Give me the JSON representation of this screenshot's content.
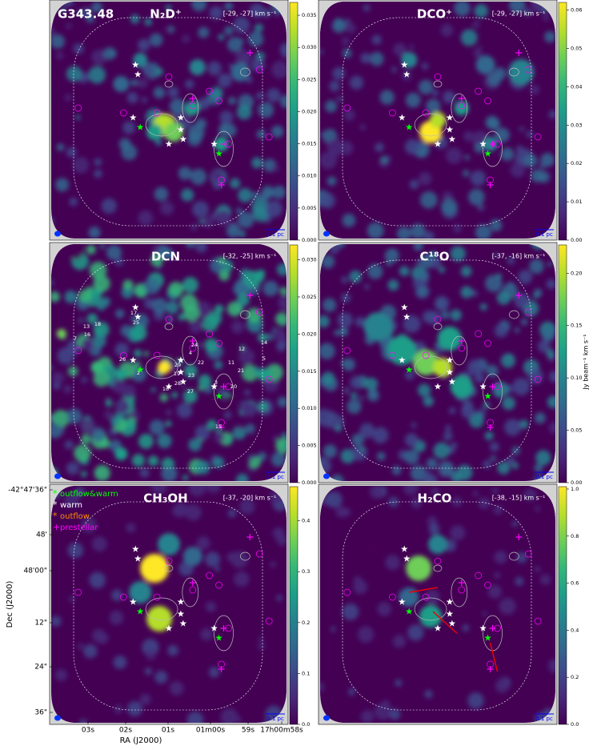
{
  "chart_data": [
    {
      "type": "heatmap",
      "field": "G343.48",
      "title": "N₂D⁺",
      "velocity": "[-29, -27] km s⁻¹",
      "scale_bar": "0.1 pc",
      "cmap": "viridis",
      "ylim": [
        0,
        0.037
      ],
      "yticks": [
        {
          "value": 0,
          "label": "0.000"
        },
        {
          "value": 0.005,
          "label": "0.005"
        },
        {
          "value": 0.01,
          "label": "0.010"
        },
        {
          "value": 0.015,
          "label": "0.015"
        },
        {
          "value": 0.02,
          "label": "0.020"
        },
        {
          "value": 0.025,
          "label": "0.025"
        },
        {
          "value": 0.03,
          "label": "0.030"
        },
        {
          "value": 0.035,
          "label": "0.035"
        }
      ]
    },
    {
      "type": "heatmap",
      "title": "DCO⁺",
      "velocity": "[-29, -27] km s⁻¹",
      "scale_bar": "0.1 pc",
      "cmap": "viridis",
      "ylim": [
        0,
        0.062
      ],
      "yticks": [
        {
          "value": 0,
          "label": "0.00"
        },
        {
          "value": 0.01,
          "label": "0.01"
        },
        {
          "value": 0.02,
          "label": "0.02"
        },
        {
          "value": 0.03,
          "label": "0.03"
        },
        {
          "value": 0.04,
          "label": "0.04"
        },
        {
          "value": 0.05,
          "label": "0.05"
        },
        {
          "value": 0.06,
          "label": "0.06"
        }
      ]
    },
    {
      "type": "heatmap",
      "title": "DCN",
      "velocity": "[-32, -25] km s⁻¹",
      "scale_bar": "0.1 pc",
      "cmap": "viridis",
      "ylim": [
        0,
        0.032
      ],
      "yticks": [
        {
          "value": 0,
          "label": "0.000"
        },
        {
          "value": 0.005,
          "label": "0.005"
        },
        {
          "value": 0.01,
          "label": "0.010"
        },
        {
          "value": 0.015,
          "label": "0.015"
        },
        {
          "value": 0.02,
          "label": "0.020"
        },
        {
          "value": 0.025,
          "label": "0.025"
        },
        {
          "value": 0.03,
          "label": "0.030"
        }
      ],
      "source_ids": [
        "17",
        "25",
        "13",
        "18",
        "16",
        "7",
        "26",
        "2",
        "24",
        "4",
        "22",
        "29",
        "19",
        "28",
        "23",
        "10",
        "27",
        "12",
        "14",
        "11",
        "21",
        "3",
        "20",
        "15",
        "5"
      ]
    },
    {
      "type": "heatmap",
      "title": "C¹⁸O",
      "velocity": "[-37, -16] km s⁻¹",
      "scale_bar": "0.1 pc",
      "cmap": "viridis",
      "ylim": [
        0,
        0.227
      ],
      "yticks": [
        {
          "value": 0,
          "label": "0.00"
        },
        {
          "value": 0.05,
          "label": "0.05"
        },
        {
          "value": 0.1,
          "label": "0.10"
        },
        {
          "value": 0.15,
          "label": "0.15"
        },
        {
          "value": 0.2,
          "label": "0.20"
        }
      ]
    },
    {
      "type": "heatmap",
      "title": "CH₃OH",
      "velocity": "[-37, -20] km s⁻¹",
      "scale_bar": "0.1 pc",
      "cmap": "viridis",
      "ylim": [
        0,
        0.467
      ],
      "yticks": [
        {
          "value": 0,
          "label": "0.0"
        },
        {
          "value": 0.1,
          "label": "0.1"
        },
        {
          "value": 0.2,
          "label": "0.2"
        },
        {
          "value": 0.3,
          "label": "0.3"
        },
        {
          "value": 0.4,
          "label": "0.4"
        }
      ]
    },
    {
      "type": "heatmap",
      "title": "H₂CO",
      "velocity": "[-38, -15] km s⁻¹",
      "scale_bar": "0.1 pc",
      "cmap": "viridis",
      "ylim": [
        0,
        1.01
      ],
      "yticks": [
        {
          "value": 0,
          "label": "0.0"
        },
        {
          "value": 0.2,
          "label": "0.2"
        },
        {
          "value": 0.4,
          "label": "0.4"
        },
        {
          "value": 0.6,
          "label": "0.6"
        },
        {
          "value": 0.8,
          "label": "0.8"
        },
        {
          "value": 1,
          "label": "1.0"
        }
      ]
    }
  ],
  "colorbar_label": "Jy beam⁻¹ km s⁻¹",
  "axes": {
    "xlabel": "RA (J2000)",
    "ylabel": "Dec (J2000)",
    "xticks": [
      "03s",
      "02s",
      "01s",
      "01m00s",
      "59s",
      "17h00m58s"
    ],
    "yticks": [
      "-42°47'36\"",
      "48'",
      "48'00\"",
      "12\"",
      "24\"",
      "36\""
    ]
  },
  "legend": [
    {
      "symbol": "*",
      "name": "outflow&warm",
      "color": "#00ff00"
    },
    {
      "symbol": "*",
      "name": "warm",
      "color": "#ffffff"
    },
    {
      "symbol": "*",
      "name": "outflow",
      "color": "#ff8c00"
    },
    {
      "symbol": "+",
      "name": "prestellar",
      "color": "#ff00ff"
    }
  ]
}
